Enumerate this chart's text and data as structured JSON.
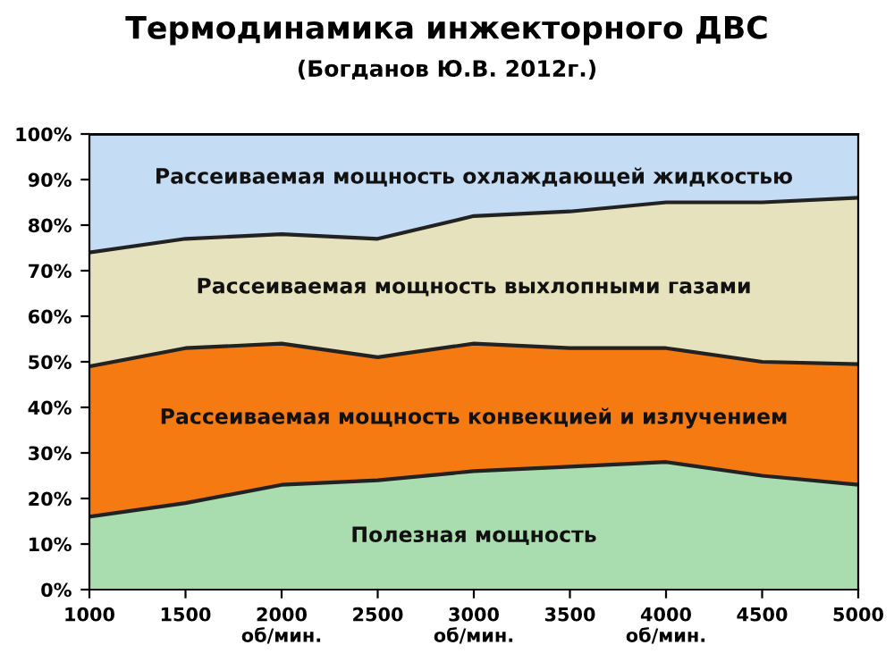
{
  "chart_data": {
    "type": "area",
    "stacked": true,
    "title": "Термодинамика инжекторного ДВС",
    "subtitle": "(Богданов Ю.В. 2012г.)",
    "categories": [
      "1000",
      "1500",
      "2000\nоб/мин.",
      "2500",
      "3000\nоб/мин.",
      "3500",
      "4000\nоб/мин.",
      "4500",
      "5000"
    ],
    "series": [
      {
        "name": "Полезная мощность",
        "color": "#a9dcae",
        "values": [
          16,
          19,
          23,
          24,
          26,
          27,
          28,
          25,
          23
        ]
      },
      {
        "name": "Рассеиваемая мощность конвекцией и излучением",
        "color": "#f57a12",
        "values": [
          33,
          34,
          31,
          27,
          28,
          26,
          25,
          25,
          26.5
        ]
      },
      {
        "name": "Рассеиваемая мощность выхлопными газами",
        "color": "#e6e2bd",
        "values": [
          25,
          24,
          24,
          26,
          28,
          30,
          32,
          35,
          36.5
        ]
      },
      {
        "name": "Рассеиваемая мощность охлаждающей жидкостью",
        "color": "#c4dcf4",
        "values": [
          26,
          23,
          22,
          23,
          18,
          17,
          15,
          15,
          14
        ]
      }
    ],
    "ylim": [
      0,
      100
    ],
    "yticks": [
      {
        "value": 0,
        "label": "0%"
      },
      {
        "value": 10,
        "label": "10%"
      },
      {
        "value": 20,
        "label": "20%"
      },
      {
        "value": 30,
        "label": "30%"
      },
      {
        "value": 40,
        "label": "40%"
      },
      {
        "value": 50,
        "label": "50%"
      },
      {
        "value": 60,
        "label": "60%"
      },
      {
        "value": 70,
        "label": "70%"
      },
      {
        "value": 80,
        "label": "80%"
      },
      {
        "value": 90,
        "label": "90%"
      },
      {
        "value": 100,
        "label": "100%"
      }
    ],
    "grid": false,
    "legend": false
  }
}
